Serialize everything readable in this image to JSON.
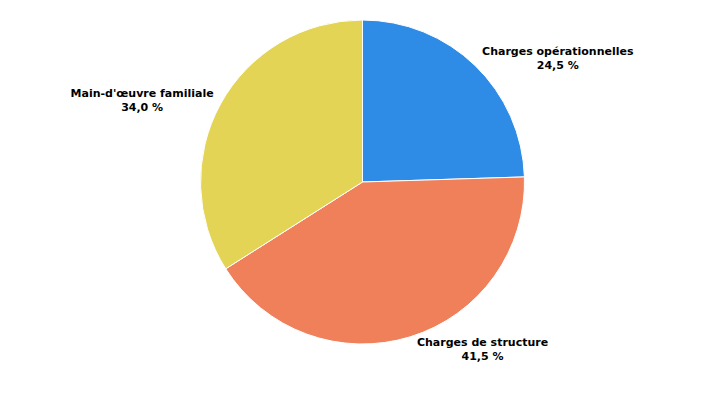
{
  "chart_data": {
    "type": "pie",
    "categories": [
      "Charges opérationnelles",
      "Charges de structure",
      "Main-d'œuvre familiale"
    ],
    "values": [
      24.5,
      41.5,
      34.0
    ],
    "value_labels": [
      "24,5 %",
      "41,5 %",
      "34,0 %"
    ],
    "colors": [
      "#2e8be6",
      "#f0805a",
      "#e3d456"
    ],
    "data_labels": true
  }
}
